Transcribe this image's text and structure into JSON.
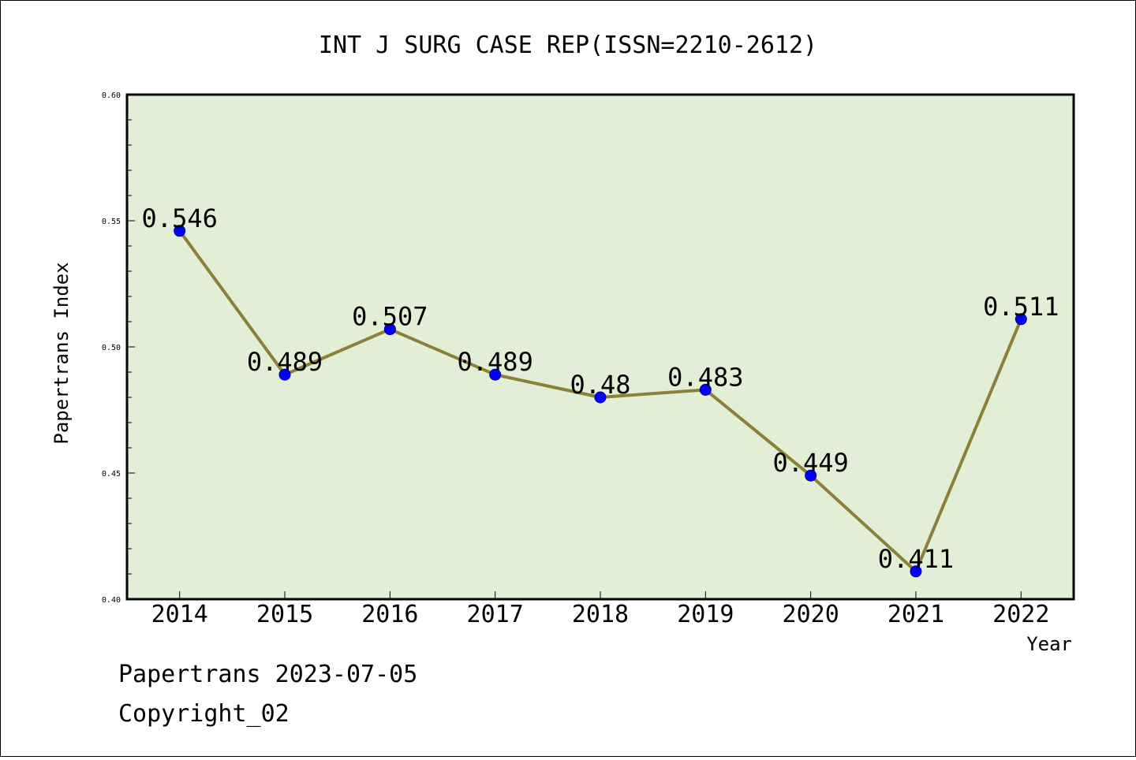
{
  "chart_data": {
    "type": "line",
    "title": "INT J SURG CASE REP(ISSN=2210-2612)",
    "xlabel": "Year",
    "ylabel": "Papertrans Index",
    "categories": [
      "2014",
      "2015",
      "2016",
      "2017",
      "2018",
      "2019",
      "2020",
      "2021",
      "2022"
    ],
    "values": [
      0.546,
      0.489,
      0.507,
      0.489,
      0.48,
      0.483,
      0.449,
      0.411,
      0.511
    ],
    "data_labels": [
      "0.546",
      "0.489",
      "0.507",
      "0.489",
      "0.48",
      "0.483",
      "0.449",
      "0.411",
      "0.511"
    ],
    "ylim": [
      0.4,
      0.6
    ],
    "yticks": [
      "0.40",
      "0.45",
      "0.50",
      "0.55",
      "0.60"
    ],
    "grid": false,
    "legend": "none",
    "colors": {
      "plot_background": "#e2efd6",
      "line": "#8b8039",
      "marker": "#0000ff",
      "frame": "#000000"
    }
  },
  "footer": {
    "date_line": "Papertrans 2023-07-05",
    "copyright_line": "Copyright_02"
  }
}
